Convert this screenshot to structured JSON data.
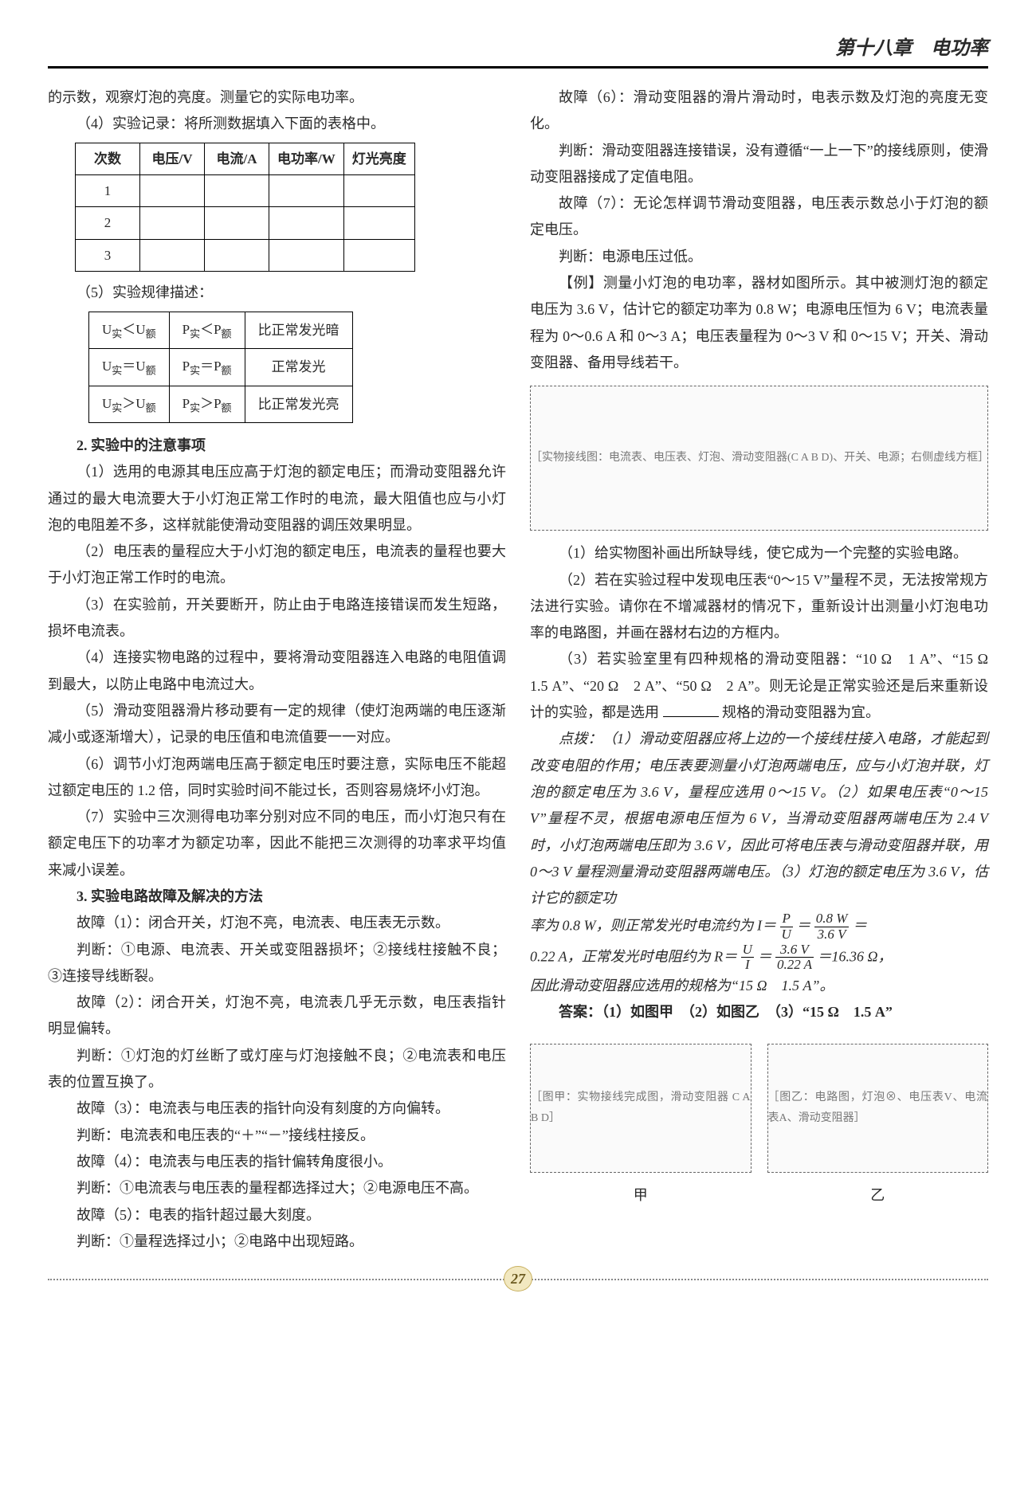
{
  "header": {
    "title": "第十八章　电功率"
  },
  "left": {
    "p1": "的示数，观察灯泡的亮度。测量它的实际电功率。",
    "p2": "（4）实验记录：将所测数据填入下面的表格中。",
    "table1": {
      "headers": [
        "次数",
        "电压/V",
        "电流/A",
        "电功率/W",
        "灯光亮度"
      ],
      "rows": [
        [
          "1",
          "",
          "",
          "",
          ""
        ],
        [
          "2",
          "",
          "",
          "",
          ""
        ],
        [
          "3",
          "",
          "",
          "",
          ""
        ]
      ]
    },
    "p3": "（5）实验规律描述：",
    "table2": {
      "rows": [
        [
          "U实＜U额",
          "P实＜P额",
          "比正常发光暗"
        ],
        [
          "U实＝U额",
          "P实＝P额",
          "正常发光"
        ],
        [
          "U实＞U额",
          "P实＞P额",
          "比正常发光亮"
        ]
      ]
    },
    "h2": "2. 实验中的注意事项",
    "n1": "（1）选用的电源其电压应高于灯泡的额定电压；而滑动变阻器允许通过的最大电流要大于小灯泡正常工作时的电流，最大阻值也应与小灯泡的电阻差不多，这样就能使滑动变阻器的调压效果明显。",
    "n2": "（2）电压表的量程应大于小灯泡的额定电压，电流表的量程也要大于小灯泡正常工作时的电流。",
    "n3": "（3）在实验前，开关要断开，防止由于电路连接错误而发生短路，损坏电流表。",
    "n4": "（4）连接实物电路的过程中，要将滑动变阻器连入电路的电阻值调到最大，以防止电路中电流过大。",
    "n5": "（5）滑动变阻器滑片移动要有一定的规律（使灯泡两端的电压逐渐减小或逐渐增大），记录的电压值和电流值要一一对应。",
    "n6": "（6）调节小灯泡两端电压高于额定电压时要注意，实际电压不能超过额定电压的 1.2 倍，同时实验时间不能过长，否则容易烧坏小灯泡。",
    "n7": "（7）实验中三次测得电功率分别对应不同的电压，而小灯泡只有在额定电压下的功率才为额定功率，因此不能把三次测得的功率求平均值来减小误差。",
    "h3": "3. 实验电路故障及解决的方法",
    "f1a": "故障（1）：闭合开关，灯泡不亮，电流表、电压表无示数。",
    "f1b": "判断：①电源、电流表、开关或变阻器损坏；②接线柱接触不良；③连接导线断裂。",
    "f2a": "故障（2）：闭合开关，灯泡不亮，电流表几乎无示数，电压表指针明显偏转。",
    "f2b": "判断：①灯泡的灯丝断了或灯座与灯泡接触不良；②电流表和电压表的位置互换了。",
    "f3a": "故障（3）：电流表与电压表的指针向没有刻度的方向偏转。",
    "f3b": "判断：电流表和电压表的“＋”“－”接线柱接反。",
    "f4a": "故障（4）：电流表与电压表的指针偏转角度很小。",
    "f4b": "判断：①电流表与电压表的量程都选择过大；②电源电压不高。",
    "f5a": "故障（5）：电表的指针超过最大刻度。",
    "f5b": "判断：①量程选择过小；②电路中出现短路。"
  },
  "right": {
    "f6a": "故障（6）：滑动变阻器的滑片滑动时，电表示数及灯泡的亮度无变化。",
    "f6b": "判断：滑动变阻器连接错误，没有遵循“一上一下”的接线原则，使滑动变阻器接成了定值电阻。",
    "f7a": "故障（7）：无论怎样调节滑动变阻器，电压表示数总小于灯泡的额定电压。",
    "f7b": "判断：电源电压过低。",
    "ex": "【例】测量小灯泡的电功率，器材如图所示。其中被测灯泡的额定电压为 3.6 V，估计它的额定功率为 0.8 W；电源电压恒为 6 V；电流表量程为 0～0.6 A 和 0～3 A；电压表量程为 0～3 V 和 0～15 V；开关、滑动变阻器、备用导线若干。",
    "diagram1_label": "［实物接线图：电流表、电压表、灯泡、滑动变阻器(C A B D)、开关、电源；右侧虚线方框］",
    "q1": "（1）给实物图补画出所缺导线，使它成为一个完整的实验电路。",
    "q2": "（2）若在实验过程中发现电压表“0～15 V”量程不灵，无法按常规方法进行实验。请你在不增减器材的情况下，重新设计出测量小灯泡电功率的电路图，并画在器材右边的方框内。",
    "q3a": "（3）若实验室里有四种规格的滑动变阻器：“10 Ω　1 A”、“15 Ω　1.5 A”、“20 Ω　2 A”、“50 Ω　2 A”。则无论是正常实验还是后来重新设计的实验，都是选用",
    "q3b": "规格的滑动变阻器为宜。",
    "hint": "点拨：（1）滑动变阻器应将上边的一个接线柱接入电路，才能起到改变电阻的作用；电压表要测量小灯泡两端电压，应与小灯泡并联，灯泡的额定电压为 3.6 V，量程应选用 0～15 V。（2）如果电压表“0～15 V”量程不灵，根据电源电压恒为 6 V，当滑动变阻器两端电压为 2.4 V 时，小灯泡两端电压即为 3.6 V，因此可将电压表与滑动变阻器并联，用 0～3 V 量程测量滑动变阻器两端电压。（3）灯泡的额定电压为 3.6 V，估计它的额定功",
    "calc1a": "率为 0.8 W，则正常发光时电流约为 I＝",
    "frac1": {
      "num": "P",
      "den": "U"
    },
    "eq1": "＝",
    "frac1b": {
      "num": "0.8 W",
      "den": "3.6 V"
    },
    "eq1b": "＝",
    "calc2a": "0.22 A，正常发光时电阻约为 R＝",
    "frac2": {
      "num": "U",
      "den": "I"
    },
    "eq2": "＝",
    "frac2b": {
      "num": "3.6 V",
      "den": "0.22 A"
    },
    "eq2b": "＝16.36 Ω，",
    "calc3": "因此滑动变阻器应选用的规格为“15 Ω　1.5 A”。",
    "ans": "答案：（1）如图甲　（2）如图乙　（3）“15 Ω　1.5 A”",
    "diagram2a_label": "［图甲：实物接线完成图，滑动变阻器 C A B D］",
    "diagram2b_label": "［图乙：电路图，灯泡⊗、电压表V、电流表A、滑动变阻器］",
    "cap_a": "甲",
    "cap_b": "乙"
  },
  "footer": {
    "page": "27"
  }
}
